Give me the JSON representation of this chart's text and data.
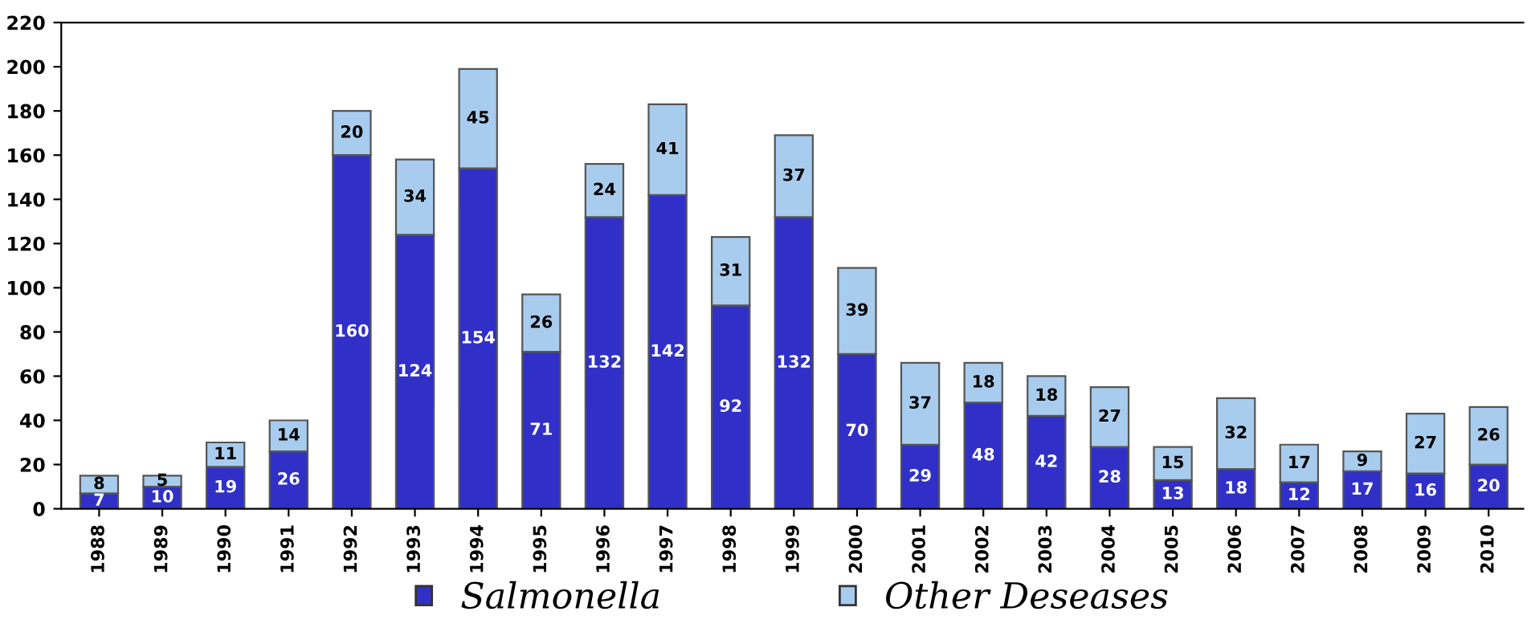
{
  "chart_data": {
    "type": "bar",
    "stacked": true,
    "data_labels": true,
    "categories": [
      "1988",
      "1989",
      "1990",
      "1991",
      "1992",
      "1993",
      "1994",
      "1995",
      "1996",
      "1997",
      "1998",
      "1999",
      "2000",
      "2001",
      "2002",
      "2003",
      "2004",
      "2005",
      "2006",
      "2007",
      "2008",
      "2009",
      "2010"
    ],
    "series": [
      {
        "name": "Salmonella",
        "color": "#3030c8",
        "values": [
          7,
          10,
          19,
          26,
          160,
          124,
          154,
          71,
          132,
          142,
          92,
          132,
          70,
          29,
          48,
          42,
          28,
          13,
          18,
          12,
          17,
          16,
          20
        ]
      },
      {
        "name": "Other Deseases",
        "color": "#a8ccee",
        "values": [
          8,
          5,
          11,
          14,
          20,
          34,
          45,
          26,
          24,
          41,
          31,
          37,
          39,
          37,
          18,
          18,
          27,
          15,
          32,
          17,
          9,
          27,
          26
        ]
      }
    ],
    "ylim": [
      0,
      220
    ],
    "yticks": [
      0,
      20,
      40,
      60,
      80,
      100,
      120,
      140,
      160,
      180,
      200,
      220
    ],
    "grid": false,
    "legend": "bottom"
  }
}
